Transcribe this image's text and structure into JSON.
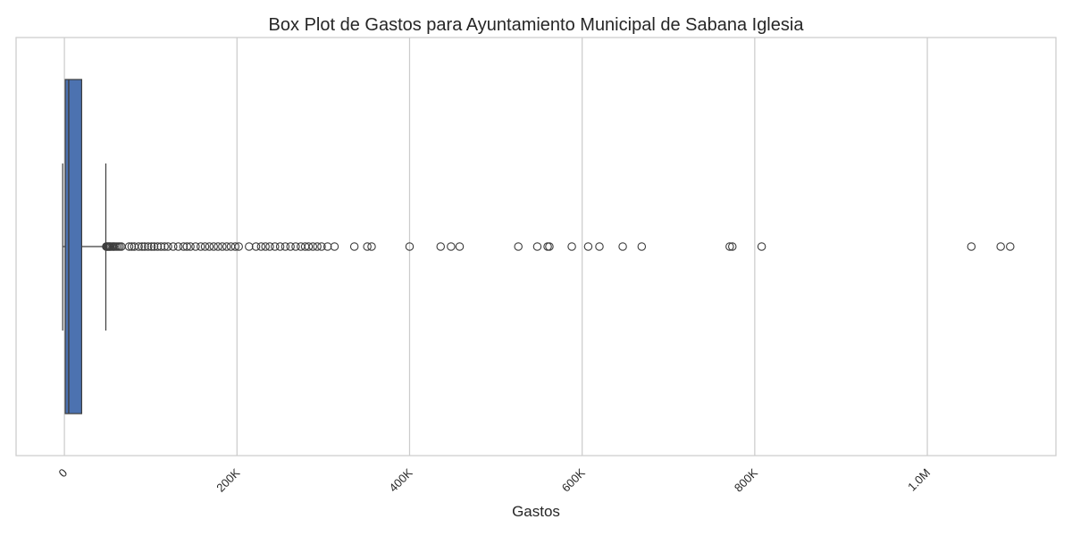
{
  "chart_data": {
    "type": "box",
    "orientation": "horizontal",
    "title": "Box Plot de Gastos para Ayuntamiento Municipal de Sabana Iglesia",
    "xlabel": "Gastos",
    "ylabel": "",
    "xlim": [
      -56000,
      1149000
    ],
    "grid": true,
    "x_ticks": [
      {
        "value": 0,
        "label": "0"
      },
      {
        "value": 200000,
        "label": "200K"
      },
      {
        "value": 400000,
        "label": "400K"
      },
      {
        "value": 600000,
        "label": "600K"
      },
      {
        "value": 800000,
        "label": "800K"
      },
      {
        "value": 1000000,
        "label": "1.0M"
      }
    ],
    "box": {
      "whisker_low": -2000,
      "q1": 1000,
      "median": 5000,
      "q3": 20000,
      "whisker_high": 48000,
      "fill": "#4c72b0",
      "edge": "#3d3d3d"
    },
    "outliers": [
      48500,
      49500,
      50500,
      51500,
      52500,
      53500,
      55000,
      56500,
      58000,
      60000,
      62000,
      64000,
      66000,
      75000,
      78000,
      81000,
      86000,
      90000,
      93000,
      97000,
      101000,
      104000,
      108000,
      112000,
      116000,
      120000,
      126000,
      132000,
      138000,
      142000,
      146000,
      152000,
      158000,
      163000,
      168000,
      173000,
      178000,
      183000,
      188000,
      193000,
      198000,
      202000,
      214000,
      222000,
      228000,
      233000,
      238000,
      244000,
      250000,
      256000,
      262000,
      268000,
      274000,
      279000,
      283000,
      288000,
      293000,
      298000,
      305000,
      313000,
      336000,
      351000,
      356000,
      400000,
      436000,
      448000,
      458000,
      526000,
      548000,
      560000,
      562000,
      588000,
      607000,
      620000,
      647000,
      669000,
      771000,
      774000,
      808000,
      1051000,
      1085000,
      1096000
    ]
  }
}
